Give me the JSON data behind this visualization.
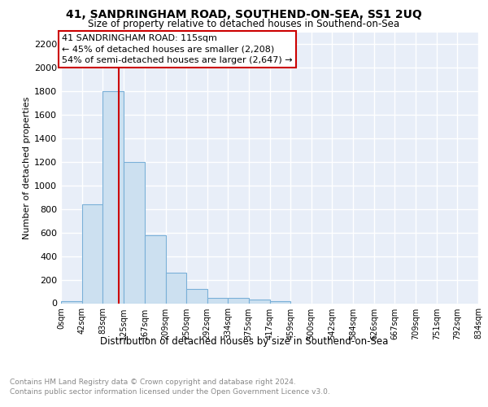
{
  "title": "41, SANDRINGHAM ROAD, SOUTHEND-ON-SEA, SS1 2UQ",
  "subtitle": "Size of property relative to detached houses in Southend-on-Sea",
  "xlabel": "Distribution of detached houses by size in Southend-on-Sea",
  "ylabel": "Number of detached properties",
  "bar_values": [
    20,
    840,
    1800,
    1200,
    580,
    260,
    120,
    45,
    45,
    30,
    15,
    0,
    0,
    0,
    0,
    0,
    0,
    0,
    0,
    0
  ],
  "bin_edges": [
    0,
    42,
    83,
    125,
    167,
    209,
    250,
    292,
    334,
    375,
    417,
    459,
    500,
    542,
    584,
    626,
    667,
    709,
    751,
    792,
    834
  ],
  "tick_labels": [
    "0sqm",
    "42sqm",
    "83sqm",
    "125sqm",
    "167sqm",
    "209sqm",
    "250sqm",
    "292sqm",
    "334sqm",
    "375sqm",
    "417sqm",
    "459sqm",
    "500sqm",
    "542sqm",
    "584sqm",
    "626sqm",
    "667sqm",
    "709sqm",
    "751sqm",
    "792sqm",
    "834sqm"
  ],
  "bar_color": "#cce0f0",
  "bar_edge_color": "#7ab0d8",
  "vline_x": 115,
  "vline_color": "#cc0000",
  "annotation_line1": "41 SANDRINGHAM ROAD: 115sqm",
  "annotation_line2": "← 45% of detached houses are smaller (2,208)",
  "annotation_line3": "54% of semi-detached houses are larger (2,647) →",
  "annotation_box_edgecolor": "#cc0000",
  "ylim": [
    0,
    2300
  ],
  "yticks": [
    0,
    200,
    400,
    600,
    800,
    1000,
    1200,
    1400,
    1600,
    1800,
    2000,
    2200
  ],
  "footer_line1": "Contains HM Land Registry data © Crown copyright and database right 2024.",
  "footer_line2": "Contains public sector information licensed under the Open Government Licence v3.0.",
  "plot_bg_color": "#e8eef8",
  "grid_color": "#ffffff"
}
